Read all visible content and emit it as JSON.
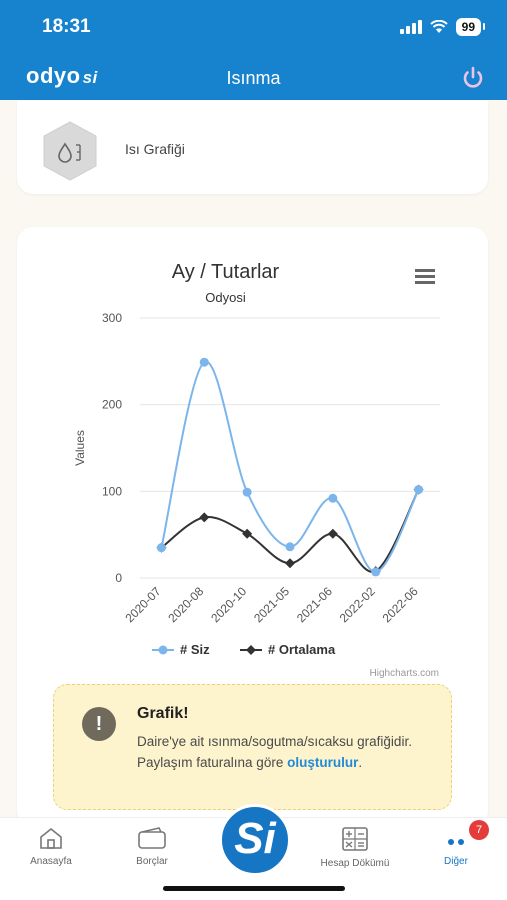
{
  "status": {
    "time": "18:31",
    "battery": "99"
  },
  "header": {
    "logo": "odyo",
    "logo_suffix": "si",
    "title": "Isınma"
  },
  "heat_card": {
    "label": "Isı Grafiği"
  },
  "chart": {
    "menu_icon": "hamburger-menu-icon",
    "credit": "Highcharts.com",
    "colors": {
      "siz": "#7cb5ec",
      "ortalama": "#333333",
      "grid": "#e6e6e6"
    }
  },
  "chart_data": {
    "type": "line",
    "title": "Ay / Tutarlar",
    "subtitle": "Odyosi",
    "ylabel": "Values",
    "ylim": [
      0,
      300
    ],
    "yticks": [
      0,
      100,
      200,
      300
    ],
    "categories": [
      "2020-07",
      "2020-08",
      "2020-10",
      "2021-05",
      "2021-06",
      "2022-02",
      "2022-06"
    ],
    "series": [
      {
        "name": "# Siz",
        "values": [
          35,
          249,
          99,
          36,
          92,
          7,
          102
        ]
      },
      {
        "name": "# Ortalama",
        "values": [
          35,
          70,
          51,
          17,
          51,
          8,
          102
        ]
      }
    ],
    "legend": "bottom-center",
    "grid": true
  },
  "alert": {
    "icon": "!",
    "title": "Grafik!",
    "body": "Daire'ye ait ısınma/sogutma/sıcaksu grafiğidir. Paylaşım faturalına göre",
    "link": "oluşturulur",
    "suffix": "."
  },
  "tabs": {
    "home": "Anasayfa",
    "debts": "Borçlar",
    "center": "Si",
    "statement": "Hesap Dökümü",
    "other": "Diğer",
    "other_badge": "7"
  }
}
